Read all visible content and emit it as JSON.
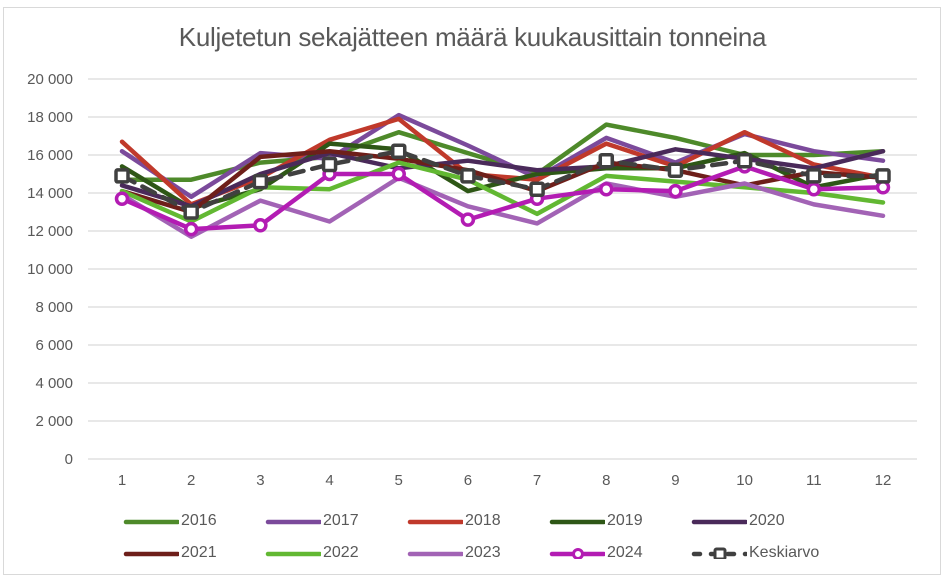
{
  "chart_data": {
    "type": "line",
    "title": "Kuljetetun sekajätteen määrä kuukausittain tonneina",
    "xlabel": "",
    "ylabel": "",
    "x": [
      1,
      2,
      3,
      4,
      5,
      6,
      7,
      8,
      9,
      10,
      11,
      12
    ],
    "x_tick_labels": [
      "1",
      "2",
      "3",
      "4",
      "5",
      "6",
      "7",
      "8",
      "9",
      "10",
      "11",
      "12"
    ],
    "ylim": [
      0,
      20000
    ],
    "y_ticks": [
      0,
      2000,
      4000,
      6000,
      8000,
      10000,
      12000,
      14000,
      16000,
      18000,
      20000
    ],
    "y_tick_labels": [
      "0",
      "2 000",
      "4 000",
      "6 000",
      "8 000",
      "10 000",
      "12 000",
      "14 000",
      "16 000",
      "18 000",
      "20 000"
    ],
    "grid": true,
    "legend_position": "bottom",
    "series": [
      {
        "name": "2016",
        "color": "#4e8a2a",
        "marker": "none",
        "dash": false,
        "values": [
          14700,
          14700,
          15600,
          15900,
          17200,
          16100,
          15000,
          17600,
          16900,
          16000,
          16000,
          16200
        ]
      },
      {
        "name": "2017",
        "color": "#7b4a9b",
        "marker": "none",
        "dash": false,
        "values": [
          16200,
          13800,
          16100,
          15800,
          18100,
          16500,
          14800,
          16900,
          15600,
          17100,
          16200,
          15700
        ]
      },
      {
        "name": "2018",
        "color": "#c0392b",
        "marker": "none",
        "dash": false,
        "values": [
          16700,
          13400,
          14800,
          16800,
          17900,
          15000,
          14700,
          16600,
          15400,
          17200,
          15500,
          14800
        ]
      },
      {
        "name": "2019",
        "color": "#2e5716",
        "marker": "none",
        "dash": false,
        "values": [
          15400,
          13200,
          14200,
          16600,
          16300,
          14100,
          15000,
          15300,
          15300,
          16100,
          14300,
          15000
        ]
      },
      {
        "name": "2020",
        "color": "#4a2a5a",
        "marker": "none",
        "dash": false,
        "values": [
          14400,
          13300,
          15000,
          16100,
          15300,
          15700,
          15200,
          15400,
          16300,
          15800,
          15300,
          16200
        ]
      },
      {
        "name": "2021",
        "color": "#6e1f1a",
        "marker": "none",
        "dash": false,
        "values": [
          14100,
          13000,
          15900,
          16200,
          15800,
          15200,
          14100,
          15600,
          15200,
          14400,
          15100,
          14800
        ]
      },
      {
        "name": "2022",
        "color": "#62b832",
        "marker": "none",
        "dash": false,
        "values": [
          14100,
          12500,
          14300,
          14200,
          15600,
          14700,
          12900,
          14900,
          14600,
          14300,
          14000,
          13500
        ]
      },
      {
        "name": "2023",
        "color": "#a263b5",
        "marker": "none",
        "dash": false,
        "values": [
          13900,
          11700,
          13600,
          12500,
          14800,
          13300,
          12400,
          14500,
          13800,
          14500,
          13400,
          12800
        ]
      },
      {
        "name": "2024",
        "color": "#b31cb3",
        "marker": "circle",
        "dash": false,
        "values": [
          13700,
          12100,
          12300,
          15000,
          15000,
          12600,
          13700,
          14200,
          14100,
          15400,
          14200,
          14300
        ]
      },
      {
        "name": "Keskiarvo",
        "color": "#404040",
        "marker": "square",
        "dash": true,
        "values": [
          14900,
          13000,
          14600,
          15500,
          16200,
          14900,
          14200,
          15700,
          15200,
          15700,
          14900,
          14900
        ]
      }
    ]
  }
}
